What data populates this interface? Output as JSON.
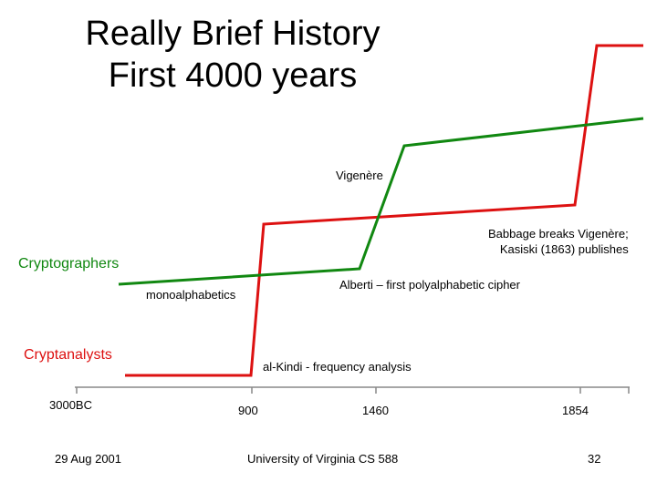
{
  "title": {
    "line1": "Really Brief History",
    "line2": "First 4000 years"
  },
  "series": {
    "cryptographers": {
      "label": "Cryptographers",
      "color": "#118811"
    },
    "cryptanalysts": {
      "label": "Cryptanalysts",
      "color": "#dd1111"
    }
  },
  "annotations": {
    "vigenere": "Vigenère",
    "babbage_line1": "Babbage breaks Vigenère;",
    "babbage_line2": "Kasiski (1863) publishes",
    "monoalphabetics": "monoalphabetics",
    "alberti": "Alberti – first polyalphabetic cipher",
    "alkindi": "al-Kindi - frequency analysis"
  },
  "axis": {
    "ticks": [
      "3000BC",
      "900",
      "1460",
      "1854"
    ]
  },
  "footer": {
    "date": "29 Aug 2001",
    "course": "University of Virginia CS 588",
    "page": "32"
  }
}
